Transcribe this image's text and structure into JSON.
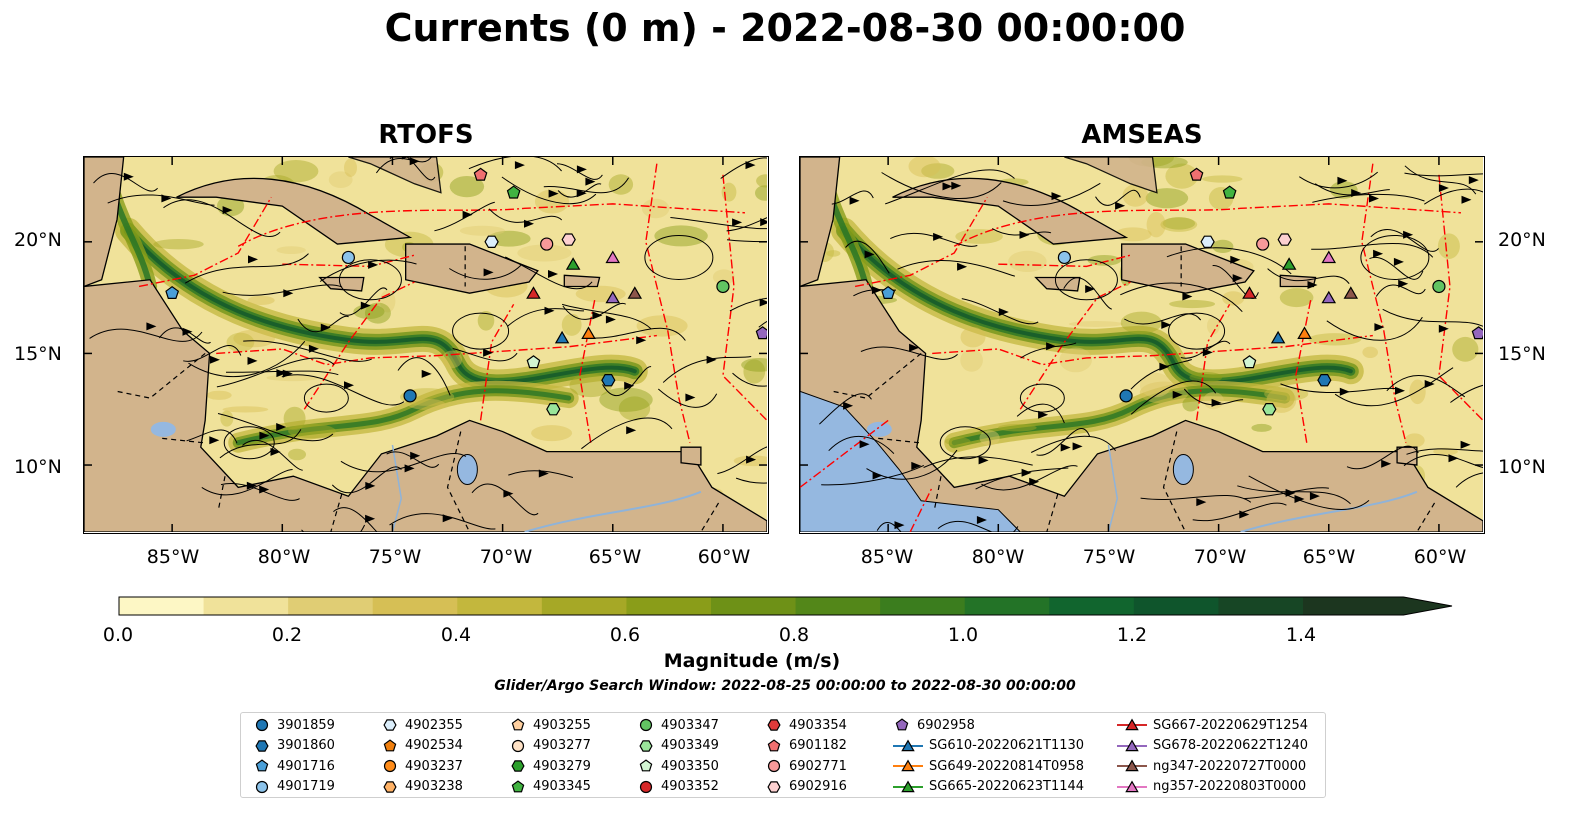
{
  "title": "Currents (0 m) - 2022-08-30 00:00:00",
  "panels": [
    {
      "title": "RTOFS"
    },
    {
      "title": "AMSEAS"
    }
  ],
  "axes": {
    "lat_labels": [
      "20°N",
      "15°N",
      "10°N"
    ],
    "lon_labels": [
      "85°W",
      "80°W",
      "75°W",
      "70°W",
      "65°W",
      "60°W"
    ]
  },
  "colorbar": {
    "label": "Magnitude (m/s)",
    "ticks": [
      "0.0",
      "0.2",
      "0.4",
      "0.6",
      "0.8",
      "1.0",
      "1.2",
      "1.4"
    ],
    "range": [
      0.0,
      1.5
    ],
    "extend": "max",
    "colors": [
      "#fdf7c5",
      "#f0e29a",
      "#e0cd74",
      "#d6bf55",
      "#c3b73d",
      "#a6a826",
      "#8a9d19",
      "#6e9117",
      "#538719",
      "#3b7d1e",
      "#237327",
      "#11652e",
      "#0f552c",
      "#174625",
      "#1c361f"
    ]
  },
  "map_style": {
    "land_color": "#d2b48c",
    "water_color": "#95b8e0",
    "boundary_color": "#ff0000",
    "streamline_color": "#000000"
  },
  "search_window": "Glider/Argo Search Window: 2022-08-25 00:00:00 to 2022-08-30 00:00:00",
  "legend": [
    {
      "label": "3901859",
      "marker": "circle",
      "color": "#1f77b4"
    },
    {
      "label": "3901860",
      "marker": "hexagon",
      "color": "#1f77b4"
    },
    {
      "label": "4901716",
      "marker": "pentagon",
      "color": "#4a9fd8"
    },
    {
      "label": "4901719",
      "marker": "circle",
      "color": "#8cc3ea"
    },
    {
      "label": "4902355",
      "marker": "hexagon",
      "color": "#dbeefb"
    },
    {
      "label": "4902534",
      "marker": "pentagon",
      "color": "#f07f0e"
    },
    {
      "label": "4903237",
      "marker": "circle",
      "color": "#ff8c1a"
    },
    {
      "label": "4903238",
      "marker": "hexagon",
      "color": "#ffb266"
    },
    {
      "label": "4903255",
      "marker": "pentagon",
      "color": "#ffd0a0"
    },
    {
      "label": "4903277",
      "marker": "circle",
      "color": "#ffe2c6"
    },
    {
      "label": "4903279",
      "marker": "hexagon",
      "color": "#2ca02c"
    },
    {
      "label": "4903345",
      "marker": "pentagon",
      "color": "#41b341"
    },
    {
      "label": "4903347",
      "marker": "circle",
      "color": "#62c462"
    },
    {
      "label": "4903349",
      "marker": "hexagon",
      "color": "#9ae59a"
    },
    {
      "label": "4903350",
      "marker": "pentagon",
      "color": "#d2f5d2"
    },
    {
      "label": "4903352",
      "marker": "circle",
      "color": "#d62728"
    },
    {
      "label": "4903354",
      "marker": "hexagon",
      "color": "#e03a3a"
    },
    {
      "label": "6901182",
      "marker": "pentagon",
      "color": "#f07070"
    },
    {
      "label": "6902771",
      "marker": "circle",
      "color": "#f79a9a"
    },
    {
      "label": "6902916",
      "marker": "hexagon",
      "color": "#fcd0d0"
    },
    {
      "label": "6902958",
      "marker": "pentagon",
      "color": "#9467bd"
    },
    {
      "label": "SG610-20220621T1130",
      "marker": "triangle",
      "color": "#1f77b4"
    },
    {
      "label": "SG649-20220814T0958",
      "marker": "triangle",
      "color": "#ff7f0e"
    },
    {
      "label": "SG665-20220623T1144",
      "marker": "triangle",
      "color": "#2ca02c"
    },
    {
      "label": "SG667-20220629T1254",
      "marker": "triangle",
      "color": "#d62728"
    },
    {
      "label": "SG678-20220622T1240",
      "marker": "triangle",
      "color": "#9467bd"
    },
    {
      "label": "ng347-20220727T0000",
      "marker": "triangle",
      "color": "#8c564b"
    },
    {
      "label": "ng357-20220803T0000",
      "marker": "triangle",
      "color": "#e377c2"
    }
  ]
}
